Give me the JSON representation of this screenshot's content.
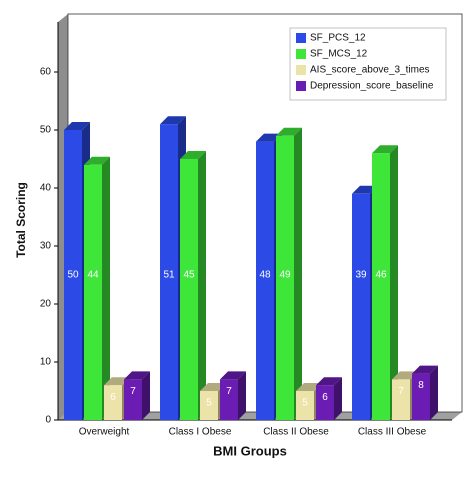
{
  "chart_data": {
    "type": "bar3d",
    "x_label": "BMI Groups",
    "y_label": "Total Scoring",
    "categories": [
      "Overweight",
      "Class I Obese",
      "Class II Obese",
      "Class III Obese"
    ],
    "series": [
      {
        "name": "SF_PCS_12",
        "color": "#2b4ae6",
        "values": [
          50,
          51,
          48,
          39
        ]
      },
      {
        "name": "SF_MCS_12",
        "color": "#3ee63a",
        "values": [
          44,
          45,
          49,
          46
        ]
      },
      {
        "name": "AIS_score_above_3_times",
        "color": "#ece3a8",
        "values": [
          6,
          5,
          5,
          7
        ]
      },
      {
        "name": "Depression_score_baseline",
        "color": "#6b1db3",
        "values": [
          7,
          7,
          6,
          8
        ]
      }
    ],
    "ylim": [
      0,
      70
    ],
    "yticks": [
      0,
      10,
      20,
      30,
      40,
      50,
      60
    ]
  }
}
